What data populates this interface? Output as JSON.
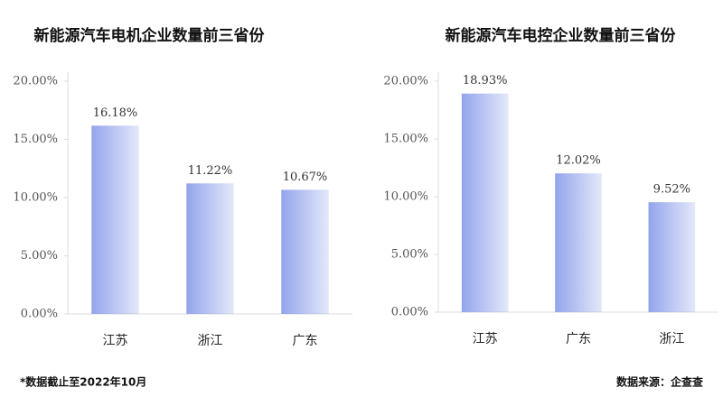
{
  "chart_data": [
    {
      "type": "bar",
      "title": "新能源汽车电机企业数量前三省份",
      "categories": [
        "江苏",
        "浙江",
        "广东"
      ],
      "values": [
        16.18,
        11.22,
        10.67
      ],
      "value_labels": [
        "16.18%",
        "11.22%",
        "10.67%"
      ],
      "color": "#93a4ec",
      "ylim": [
        0,
        20
      ],
      "yticks": [
        {
          "value": 0,
          "label": "0.00%"
        },
        {
          "value": 5,
          "label": "5.00%"
        },
        {
          "value": 10,
          "label": "10.00%"
        },
        {
          "value": 15,
          "label": "15.00%"
        },
        {
          "value": 20,
          "label": "20.00%"
        }
      ]
    },
    {
      "type": "bar",
      "title": "新能源汽车电控企业数量前三省份",
      "categories": [
        "江苏",
        "广东",
        "浙江"
      ],
      "values": [
        18.93,
        12.02,
        9.52
      ],
      "value_labels": [
        "18.93%",
        "12.02%",
        "9.52%"
      ],
      "color": "#93a4ec",
      "ylim": [
        0,
        20
      ],
      "yticks": [
        {
          "value": 0,
          "label": "0.00%"
        },
        {
          "value": 5,
          "label": "5.00%"
        },
        {
          "value": 10,
          "label": "10.00%"
        },
        {
          "value": 15,
          "label": "15.00%"
        },
        {
          "value": 20,
          "label": "20.00%"
        }
      ]
    }
  ],
  "footer": {
    "note": "*数据截止至2022年10月",
    "source": "数据来源：企查查"
  }
}
